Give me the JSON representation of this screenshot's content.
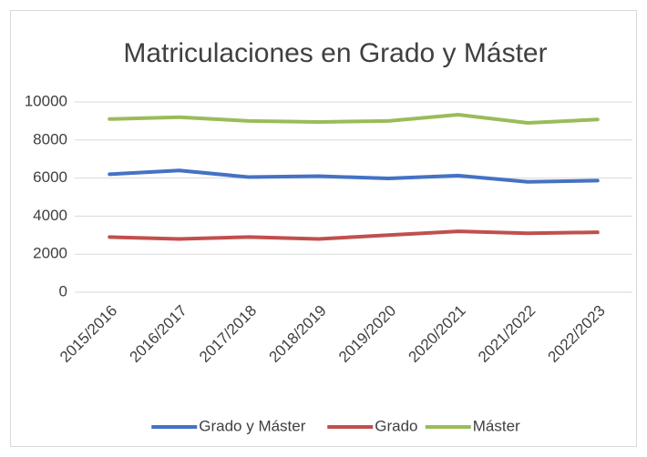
{
  "chart_data": {
    "type": "line",
    "title": "Matriculaciones en Grado y Máster",
    "categories": [
      "2015/2016",
      "2016/2017",
      "2017/2018",
      "2018/2019",
      "2019/2020",
      "2020/2021",
      "2021/2022",
      "2022/2023"
    ],
    "series": [
      {
        "name": "Grado y Máster",
        "color": "#4472c4",
        "values": [
          6200,
          6400,
          6050,
          6100,
          5980,
          6130,
          5800,
          5870
        ]
      },
      {
        "name": "Grado",
        "color": "#c0504d",
        "values": [
          2900,
          2800,
          2900,
          2800,
          3000,
          3200,
          3100,
          3150
        ]
      },
      {
        "name": "Máster",
        "color": "#9bbb59",
        "values": [
          9100,
          9200,
          9000,
          8950,
          9000,
          9330,
          8900,
          9080
        ]
      }
    ],
    "ylim": [
      0,
      10000
    ],
    "yticks": [
      0,
      2000,
      4000,
      6000,
      8000,
      10000
    ],
    "grid": true,
    "legend": "bottom"
  }
}
